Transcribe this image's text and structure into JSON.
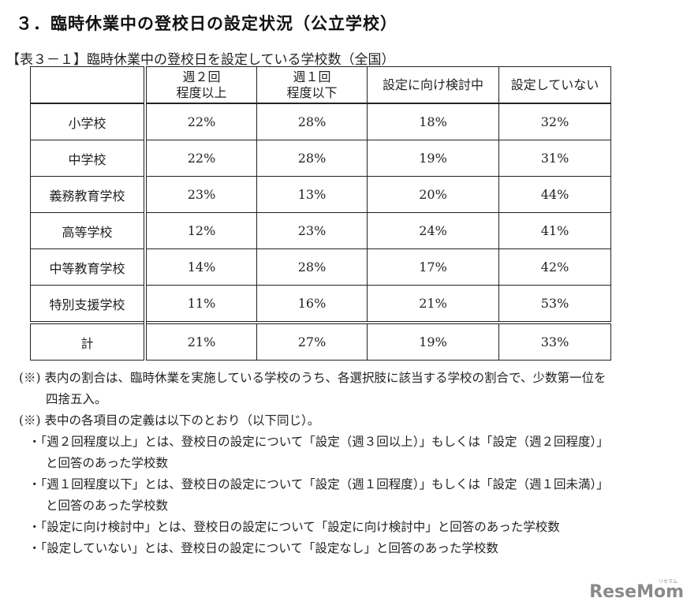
{
  "section_title": "３．臨時休業中の登校日の設定状況（公立学校）",
  "table_caption": "【表３－１】臨時休業中の登校日を設定している学校数（全国）",
  "table": {
    "headers": [
      "",
      "週２回\n程度以上",
      "週１回\n程度以下",
      "設定に向け検討中",
      "設定していない"
    ],
    "header_lines": [
      [
        ""
      ],
      [
        "週２回",
        "程度以上"
      ],
      [
        "週１回",
        "程度以下"
      ],
      [
        "設定に向け検討中"
      ],
      [
        "設定していない"
      ]
    ],
    "rows": [
      {
        "label": "小学校",
        "values": [
          "22%",
          "28%",
          "18%",
          "32%"
        ]
      },
      {
        "label": "中学校",
        "values": [
          "22%",
          "28%",
          "19%",
          "31%"
        ]
      },
      {
        "label": "義務教育学校",
        "values": [
          "23%",
          "13%",
          "20%",
          "44%"
        ]
      },
      {
        "label": "高等学校",
        "values": [
          "12%",
          "23%",
          "24%",
          "41%"
        ]
      },
      {
        "label": "中等教育学校",
        "values": [
          "14%",
          "28%",
          "17%",
          "42%"
        ]
      },
      {
        "label": "特別支援学校",
        "values": [
          "11%",
          "16%",
          "21%",
          "53%"
        ]
      }
    ],
    "total": {
      "label": "計",
      "values": [
        "21%",
        "27%",
        "19%",
        "33%"
      ]
    }
  },
  "notes": {
    "note1_line1": "(※) 表内の割合は、臨時休業を実施している学校のうち、各選択肢に該当する学校の割合で、少数第一位を",
    "note1_line2": "四捨五入。",
    "note2": "(※) 表中の各項目の定義は以下のとおり（以下同じ）。",
    "def1_line1": "・「週２回程度以上」とは、登校日の設定について「設定（週３回以上）」もしくは「設定（週２回程度）」",
    "def1_line2": "と回答のあった学校数",
    "def2_line1": "・「週１回程度以下」とは、登校日の設定について「設定（週１回程度）」もしくは「設定（週１回未満）」",
    "def2_line2": "と回答のあった学校数",
    "def3": "・「設定に向け検討中」とは、登校日の設定について「設定に向け検討中」と回答のあった学校数",
    "def4": "・「設定していない」とは、登校日の設定について「設定なし」と回答のあった学校数"
  },
  "watermark": {
    "text": "ReseMom",
    "sub": "リセマム"
  }
}
